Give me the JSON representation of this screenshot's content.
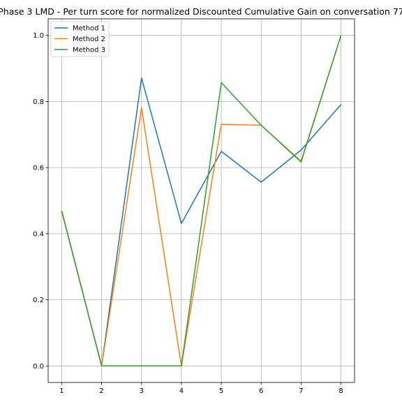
{
  "chart_data": {
    "type": "line",
    "title": "Phase 3 LMD - Per turn score for normalized Discounted Cumulative Gain on conversation 77",
    "xlabel": "",
    "ylabel": "",
    "x": [
      1,
      2,
      3,
      4,
      5,
      6,
      7,
      8
    ],
    "xlim": [
      0.66,
      8.34
    ],
    "ylim": [
      -0.05,
      1.05
    ],
    "x_ticks": [
      "1",
      "2",
      "3",
      "4",
      "5",
      "6",
      "7",
      "8"
    ],
    "y_ticks": [
      "0.0",
      "0.2",
      "0.4",
      "0.6",
      "0.8",
      "1.0"
    ],
    "grid": true,
    "legend_position": "top-left",
    "series": [
      {
        "name": "Method 1",
        "color": "#1f77b4",
        "values": [
          0.469,
          0.0,
          0.871,
          0.431,
          0.649,
          0.556,
          0.653,
          0.791
        ]
      },
      {
        "name": "Method 2",
        "color": "#ff7f0e",
        "values": [
          0.469,
          0.0,
          0.781,
          0.0,
          0.731,
          0.728,
          0.619,
          1.0
        ]
      },
      {
        "name": "Method 3",
        "color": "#2ca02c",
        "values": [
          0.469,
          0.0,
          0.0,
          0.0,
          0.857,
          0.728,
          0.617,
          1.0
        ]
      }
    ]
  }
}
